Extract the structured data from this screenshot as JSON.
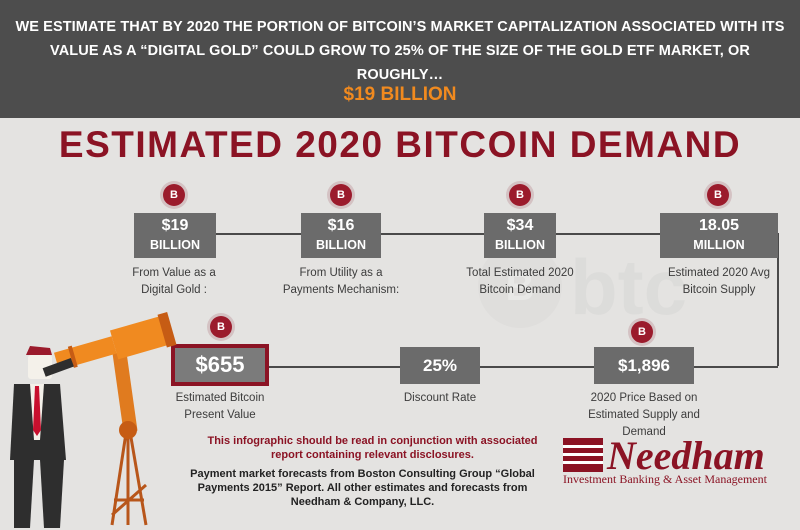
{
  "banner": {
    "text": "WE ESTIMATE THAT BY 2020 THE PORTION OF BITCOIN’S MARKET CAPITALIZATION ASSOCIATED WITH ITS VALUE AS A “DIGITAL GOLD” COULD GROW TO 25% OF THE SIZE OF THE GOLD ETF MARKET, OR ROUGHLY…",
    "amount": "$19 BILLION"
  },
  "title": "ESTIMATED 2020 BITCOIN DEMAND",
  "row1": [
    {
      "value": "$19",
      "unit": "BILLION",
      "caption": "From Value as a Digital Gold :"
    },
    {
      "value": "$16",
      "unit": "BILLION",
      "caption": "From Utility as a Payments Mechanism:"
    },
    {
      "value": "$34",
      "unit": "BILLION",
      "caption": "Total Estimated 2020 Bitcoin Demand"
    },
    {
      "value": "18.05",
      "unit": "MILLION",
      "caption": "Estimated 2020 Avg Bitcoin Supply"
    }
  ],
  "row2": [
    {
      "value": "$655",
      "caption": "Estimated Bitcoin Present Value"
    },
    {
      "value": "25%",
      "caption": "Discount Rate"
    },
    {
      "value": "$1,896",
      "caption": "2020 Price Based on Estimated Supply and Demand"
    }
  ],
  "disclaimer": "This infographic should be read in conjunction with associated report containing relevant disclosures.",
  "sources": "Payment market forecasts from Boston Consulting Group “Global Payments 2015” Report. All other estimates and forecasts from Needham & Company, LLC.",
  "logo": {
    "name": "Needham",
    "tagline": "Investment Banking & Asset Management"
  },
  "watermark_text": "btc",
  "icons": {
    "coin": "bitcoin-coin-icon",
    "figure": "man-with-telescope-illustration"
  },
  "colors": {
    "accent_red": "#8b1324",
    "accent_orange": "#f18a1f",
    "banner_gray": "#4d4d4d",
    "box_gray": "#6b6b6b"
  }
}
